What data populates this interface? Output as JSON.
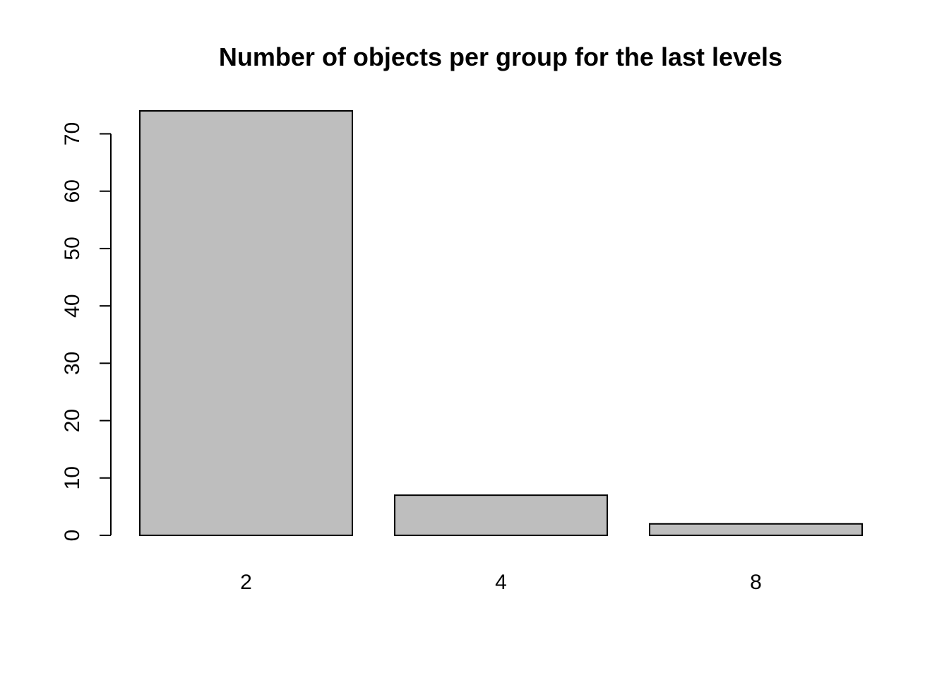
{
  "chart_data": {
    "type": "bar",
    "title": "Number of objects per group for the last levels",
    "xlabel": "",
    "ylabel": "",
    "categories": [
      "2",
      "4",
      "8"
    ],
    "values": [
      74,
      7,
      2
    ],
    "ylim": [
      0,
      74
    ],
    "yticks": [
      0,
      10,
      20,
      30,
      40,
      50,
      60,
      70
    ],
    "bar_color": "#bebebe",
    "border_color": "#000000",
    "grid": false,
    "legend": "none"
  }
}
